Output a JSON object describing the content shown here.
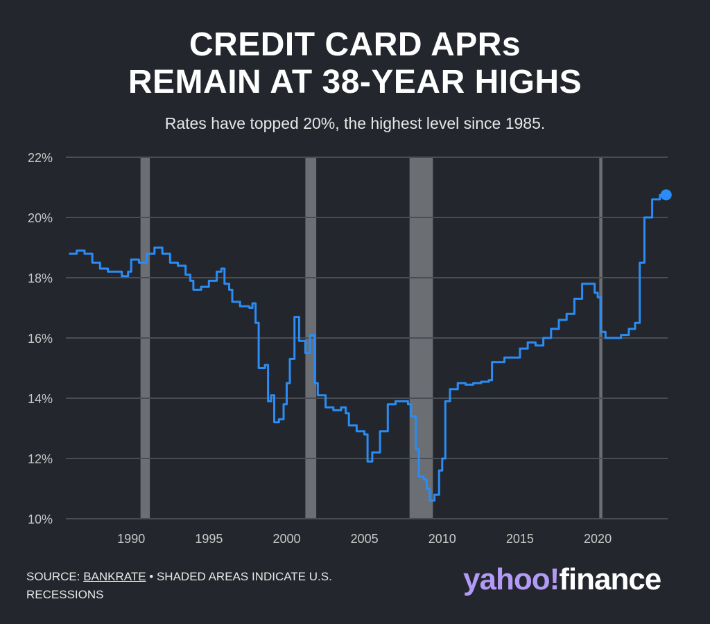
{
  "title_line1": "CREDIT CARD APRs",
  "title_line2": "REMAIN AT 38-YEAR HIGHS",
  "subtitle": "Rates have topped 20%, the highest level since 1985.",
  "footer": {
    "source_prefix": "SOURCE: ",
    "source_link": "BANKRATE",
    "source_suffix": " • SHADED AREAS INDICATE U.S.",
    "source_line2": "RECESSIONS"
  },
  "logo": {
    "part1": "yahoo!",
    "part2": "finance"
  },
  "colors": {
    "background": "#23272d",
    "line": "#2a8cf4",
    "recession": "#6b6e73",
    "grid": "#4a4e54"
  },
  "chart_data": {
    "type": "line",
    "title": "CREDIT CARD APRs REMAIN AT 38-YEAR HIGHS",
    "subtitle": "Rates have topped 20%, the highest level since 1985.",
    "ylim": [
      10,
      22
    ],
    "xlim": [
      1985.8,
      2024.5
    ],
    "yticks": [
      10,
      12,
      14,
      16,
      18,
      20,
      22
    ],
    "ytick_labels": [
      "10%",
      "12%",
      "14%",
      "16%",
      "18%",
      "20%",
      "22%"
    ],
    "xticks": [
      1990,
      1995,
      2000,
      2005,
      2010,
      2015,
      2020
    ],
    "xtick_labels": [
      "1990",
      "1995",
      "2000",
      "2005",
      "2010",
      "2015",
      "2020"
    ],
    "recessions": [
      [
        1990.6,
        1991.2
      ],
      [
        2001.2,
        2001.9
      ],
      [
        2007.9,
        2009.4
      ],
      [
        2020.1,
        2020.3
      ]
    ],
    "series": [
      {
        "name": "Credit card APR",
        "points": [
          [
            1986.0,
            18.8
          ],
          [
            1986.5,
            18.9
          ],
          [
            1987.0,
            18.8
          ],
          [
            1987.5,
            18.5
          ],
          [
            1988.0,
            18.3
          ],
          [
            1988.5,
            18.2
          ],
          [
            1989.0,
            18.2
          ],
          [
            1989.4,
            18.05
          ],
          [
            1989.8,
            18.2
          ],
          [
            1990.0,
            18.6
          ],
          [
            1990.5,
            18.5
          ],
          [
            1991.0,
            18.8
          ],
          [
            1991.5,
            19.0
          ],
          [
            1992.0,
            18.8
          ],
          [
            1992.5,
            18.5
          ],
          [
            1993.0,
            18.4
          ],
          [
            1993.5,
            18.1
          ],
          [
            1993.8,
            17.9
          ],
          [
            1994.0,
            17.6
          ],
          [
            1994.5,
            17.7
          ],
          [
            1995.0,
            17.9
          ],
          [
            1995.5,
            18.2
          ],
          [
            1995.8,
            18.3
          ],
          [
            1996.0,
            17.8
          ],
          [
            1996.3,
            17.6
          ],
          [
            1996.5,
            17.2
          ],
          [
            1997.0,
            17.05
          ],
          [
            1997.6,
            17.0
          ],
          [
            1997.8,
            17.15
          ],
          [
            1998.0,
            16.5
          ],
          [
            1998.2,
            15.0
          ],
          [
            1998.6,
            15.1
          ],
          [
            1998.8,
            13.9
          ],
          [
            1999.0,
            14.1
          ],
          [
            1999.2,
            13.2
          ],
          [
            1999.5,
            13.3
          ],
          [
            1999.8,
            13.8
          ],
          [
            2000.0,
            14.5
          ],
          [
            2000.2,
            15.3
          ],
          [
            2000.5,
            16.7
          ],
          [
            2000.8,
            15.9
          ],
          [
            2001.2,
            15.5
          ],
          [
            2001.5,
            16.1
          ],
          [
            2001.8,
            14.5
          ],
          [
            2002.0,
            14.1
          ],
          [
            2002.5,
            13.7
          ],
          [
            2003.0,
            13.6
          ],
          [
            2003.5,
            13.7
          ],
          [
            2003.8,
            13.5
          ],
          [
            2004.0,
            13.1
          ],
          [
            2004.5,
            12.9
          ],
          [
            2005.0,
            12.8
          ],
          [
            2005.2,
            11.9
          ],
          [
            2005.5,
            12.2
          ],
          [
            2006.0,
            12.9
          ],
          [
            2006.5,
            13.8
          ],
          [
            2007.0,
            13.9
          ],
          [
            2007.5,
            13.9
          ],
          [
            2007.8,
            13.8
          ],
          [
            2008.0,
            13.4
          ],
          [
            2008.3,
            12.3
          ],
          [
            2008.5,
            11.4
          ],
          [
            2008.8,
            11.3
          ],
          [
            2009.0,
            11.0
          ],
          [
            2009.2,
            10.6
          ],
          [
            2009.5,
            10.8
          ],
          [
            2009.8,
            11.6
          ],
          [
            2010.0,
            12.0
          ],
          [
            2010.2,
            13.9
          ],
          [
            2010.5,
            14.3
          ],
          [
            2011.0,
            14.5
          ],
          [
            2011.5,
            14.45
          ],
          [
            2012.0,
            14.5
          ],
          [
            2012.5,
            14.55
          ],
          [
            2013.0,
            14.6
          ],
          [
            2013.2,
            15.2
          ],
          [
            2014.0,
            15.35
          ],
          [
            2015.0,
            15.65
          ],
          [
            2015.5,
            15.85
          ],
          [
            2016.0,
            15.75
          ],
          [
            2016.5,
            16.0
          ],
          [
            2017.0,
            16.3
          ],
          [
            2017.5,
            16.6
          ],
          [
            2018.0,
            16.8
          ],
          [
            2018.5,
            17.3
          ],
          [
            2019.0,
            17.8
          ],
          [
            2019.5,
            17.8
          ],
          [
            2019.8,
            17.5
          ],
          [
            2020.0,
            17.35
          ],
          [
            2020.2,
            16.2
          ],
          [
            2020.5,
            16.0
          ],
          [
            2021.0,
            16.0
          ],
          [
            2021.5,
            16.1
          ],
          [
            2022.0,
            16.3
          ],
          [
            2022.4,
            16.5
          ],
          [
            2022.7,
            18.5
          ],
          [
            2023.0,
            20.0
          ],
          [
            2023.5,
            20.6
          ],
          [
            2024.0,
            20.75
          ],
          [
            2024.4,
            20.75
          ]
        ],
        "endpoint": [
          2024.4,
          20.75
        ]
      }
    ]
  }
}
